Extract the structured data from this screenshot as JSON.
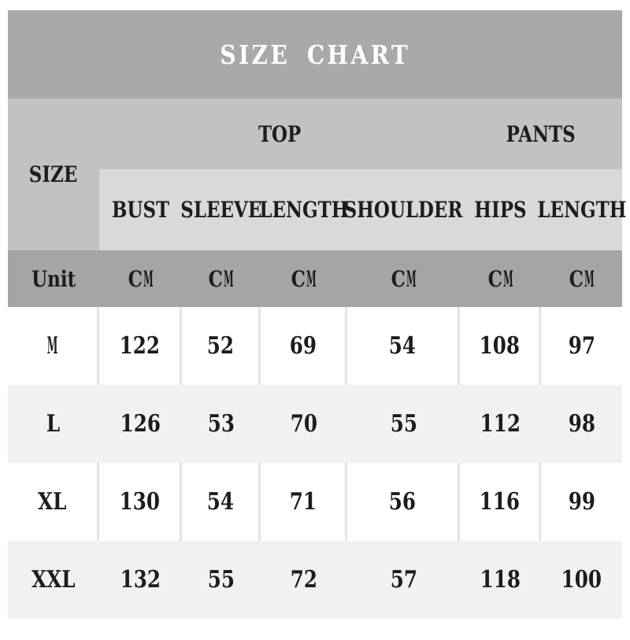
{
  "colors": {
    "title_band": "#a9a9a9",
    "header_band": "#c2c2c2",
    "subheader_box": "#d9d9d9",
    "unit_band": "#a5a5a5",
    "row_white": "#ffffff",
    "row_alt": "#f1f1f1",
    "divider": "#e5e5e5",
    "title_text": "#ffffff",
    "text": "#1d1d1d",
    "page_background": "#ffffff"
  },
  "chart_data": {
    "type": "table",
    "title": "SIZE CHART",
    "size_column_label": "SIZE",
    "unit_row_label": "Unit",
    "column_groups": [
      {
        "label": "TOP",
        "columns": [
          "BUST",
          "SLEEVE",
          "LENGTH",
          "SHOULDER"
        ]
      },
      {
        "label": "PANTS",
        "columns": [
          "HIPS",
          "LENGTH"
        ]
      }
    ],
    "columns": [
      "BUST",
      "SLEEVE",
      "LENGTH",
      "SHOULDER",
      "HIPS",
      "LENGTH"
    ],
    "units": [
      "CM",
      "CM",
      "CM",
      "CM",
      "CM",
      "CM"
    ],
    "rows": [
      {
        "size": "M",
        "values": [
          122,
          52,
          69,
          54,
          108,
          97
        ]
      },
      {
        "size": "L",
        "values": [
          126,
          53,
          70,
          55,
          112,
          98
        ]
      },
      {
        "size": "XL",
        "values": [
          130,
          54,
          71,
          56,
          116,
          99
        ]
      },
      {
        "size": "XXL",
        "values": [
          132,
          55,
          72,
          57,
          118,
          100
        ]
      }
    ]
  }
}
